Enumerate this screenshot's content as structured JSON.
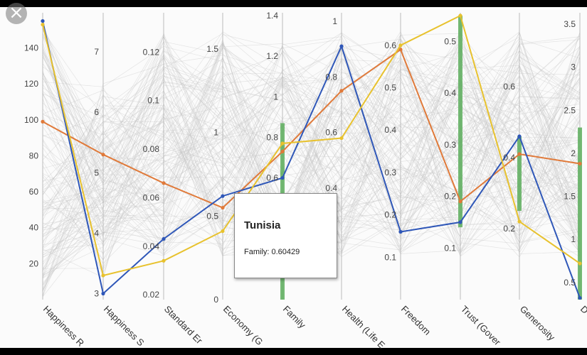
{
  "ui": {
    "close_icon": "×"
  },
  "chart_data": {
    "type": "parallel-coordinates",
    "title": "",
    "background_lines": "many light-grey country polylines",
    "axes": [
      {
        "name": "Happiness Rank",
        "label": "Happiness R",
        "ticks": [
          "20",
          "40",
          "60",
          "80",
          "100",
          "120",
          "140"
        ],
        "range": [
          0,
          158
        ]
      },
      {
        "name": "Happiness Score",
        "label": "Happiness S",
        "ticks": [
          "3",
          "4",
          "5",
          "6",
          "7"
        ],
        "range": [
          2.9,
          7.6
        ]
      },
      {
        "name": "Standard Error",
        "label": "Standard Er",
        "ticks": [
          "0.02",
          "0.04",
          "0.06",
          "0.08",
          "0.1",
          "0.12"
        ],
        "range": [
          0.018,
          0.135
        ]
      },
      {
        "name": "Economy (GDP per Capita)",
        "label": "Economy (G",
        "ticks": [
          "0",
          "0.5",
          "1",
          "1.5"
        ],
        "range": [
          0,
          1.7
        ]
      },
      {
        "name": "Family",
        "label": "Family",
        "ticks": [
          "0.2",
          "0.4",
          "0.6",
          "0.8",
          "1",
          "1.2",
          "1.4"
        ],
        "range": [
          0,
          1.4
        ]
      },
      {
        "name": "Health (Life Expectancy)",
        "label": "Health (Life E",
        "ticks": [
          "0.2",
          "0.4",
          "0.6",
          "0.8",
          "1"
        ],
        "range": [
          0,
          1.02
        ]
      },
      {
        "name": "Freedom",
        "label": "Freedom",
        "ticks": [
          "0.1",
          "0.2",
          "0.3",
          "0.4",
          "0.5",
          "0.6"
        ],
        "range": [
          0,
          0.67
        ]
      },
      {
        "name": "Trust (Government Corruption)",
        "label": "Trust (Gover",
        "ticks": [
          "0.1",
          "0.2",
          "0.3",
          "0.4",
          "0.5"
        ],
        "range": [
          0,
          0.55
        ]
      },
      {
        "name": "Generosity",
        "label": "Generosity",
        "ticks": [
          "0.2",
          "0.4",
          "0.6"
        ],
        "range": [
          0,
          0.8
        ]
      },
      {
        "name": "Dystopia Residual",
        "label": "D",
        "ticks": [
          "0.5",
          "1",
          "1.5",
          "2",
          "2.5",
          "3",
          "3.5"
        ],
        "range": [
          0.3,
          3.6
        ]
      }
    ],
    "series": [
      {
        "color": "#e07a3a",
        "values": [
          99,
          5.3,
          0.066,
          0.55,
          0.73,
          0.75,
          0.59,
          0.19,
          0.41,
          1.88
        ]
      },
      {
        "color": "#2f57b8",
        "values": [
          155,
          3.0,
          0.043,
          0.62,
          0.6,
          0.91,
          0.16,
          0.15,
          0.46,
          0.32
        ]
      },
      {
        "color": "#e8c22e",
        "values": [
          153,
          3.3,
          0.034,
          0.41,
          0.77,
          0.58,
          0.6,
          0.55,
          0.22,
          0.72
        ]
      }
    ],
    "highlight_bars": [
      {
        "axis": 4,
        "from": 0.0,
        "to": 0.87
      },
      {
        "axis": 7,
        "from": 0.14,
        "to": 0.55
      },
      {
        "axis": 8,
        "from": 0.25,
        "to": 0.46
      },
      {
        "axis": 9,
        "from": 0.3,
        "to": 2.3
      }
    ],
    "tooltip": {
      "title": "Tunisia",
      "line": "Family: 0.60429"
    }
  }
}
